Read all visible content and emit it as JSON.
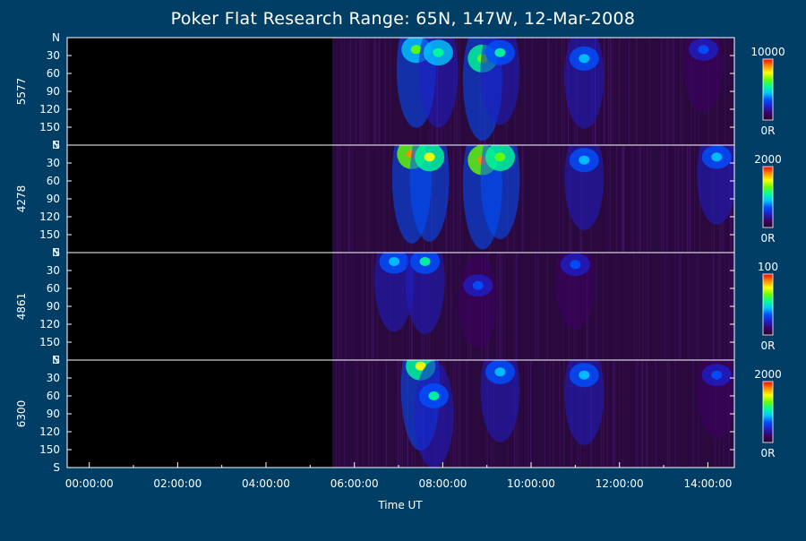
{
  "chart_data": {
    "type": "heatmap",
    "title": "Poker Flat Research Range: 65N, 147W, 12-Mar-2008",
    "xlabel": "Time UT",
    "x_ticks": [
      "00:00:00",
      "02:00:00",
      "04:00:00",
      "06:00:00",
      "08:00:00",
      "10:00:00",
      "12:00:00",
      "14:00:00"
    ],
    "x_tick_hours": [
      0,
      2,
      4,
      6,
      8,
      10,
      12,
      14
    ],
    "x_range_hours": [
      -0.5,
      14.6
    ],
    "data_start_hour": 5.5,
    "y_range": [
      0,
      180
    ],
    "y_tick_labels": [
      "N",
      "30",
      "60",
      "90",
      "120",
      "150",
      "S"
    ],
    "y_tick_values": [
      0,
      30,
      60,
      90,
      120,
      150,
      180
    ],
    "colormap": [
      "#280028",
      "#3c0064",
      "#1e1ec8",
      "#0050ff",
      "#00c8ff",
      "#00ff96",
      "#64ff00",
      "#ffff00",
      "#ff8c00",
      "#ff0000"
    ],
    "background_no_data": "#000000",
    "background_quiet": "#2a0a3e",
    "panels": [
      {
        "wavelength": "5577",
        "colorbar_max": "10000",
        "colorbar_min": "0R",
        "events": [
          {
            "t": 7.4,
            "angle": 20,
            "intensity": 0.62
          },
          {
            "t": 7.9,
            "angle": 25,
            "intensity": 0.55
          },
          {
            "t": 8.9,
            "angle": 35,
            "intensity": 0.7
          },
          {
            "t": 9.3,
            "angle": 25,
            "intensity": 0.5
          },
          {
            "t": 11.2,
            "angle": 35,
            "intensity": 0.45
          },
          {
            "t": 13.9,
            "angle": 20,
            "intensity": 0.3
          }
        ]
      },
      {
        "wavelength": "4278",
        "colorbar_max": "2000",
        "colorbar_min": "0R",
        "events": [
          {
            "t": 7.3,
            "angle": 15,
            "intensity": 0.85
          },
          {
            "t": 7.7,
            "angle": 20,
            "intensity": 0.75
          },
          {
            "t": 8.9,
            "angle": 25,
            "intensity": 0.85
          },
          {
            "t": 9.3,
            "angle": 20,
            "intensity": 0.7
          },
          {
            "t": 11.2,
            "angle": 25,
            "intensity": 0.45
          },
          {
            "t": 14.2,
            "angle": 20,
            "intensity": 0.4
          }
        ]
      },
      {
        "wavelength": "4861",
        "colorbar_max": "100",
        "colorbar_min": "0R",
        "events": [
          {
            "t": 6.9,
            "angle": 15,
            "intensity": 0.45
          },
          {
            "t": 7.6,
            "angle": 15,
            "intensity": 0.5
          },
          {
            "t": 8.8,
            "angle": 55,
            "intensity": 0.3
          },
          {
            "t": 11.0,
            "angle": 20,
            "intensity": 0.35
          }
        ]
      },
      {
        "wavelength": "6300",
        "colorbar_max": "2000",
        "colorbar_min": "0R",
        "events": [
          {
            "t": 7.5,
            "angle": 10,
            "intensity": 0.75
          },
          {
            "t": 7.8,
            "angle": 60,
            "intensity": 0.5
          },
          {
            "t": 9.3,
            "angle": 20,
            "intensity": 0.45
          },
          {
            "t": 11.2,
            "angle": 25,
            "intensity": 0.45
          },
          {
            "t": 14.2,
            "angle": 25,
            "intensity": 0.3
          }
        ]
      }
    ]
  }
}
